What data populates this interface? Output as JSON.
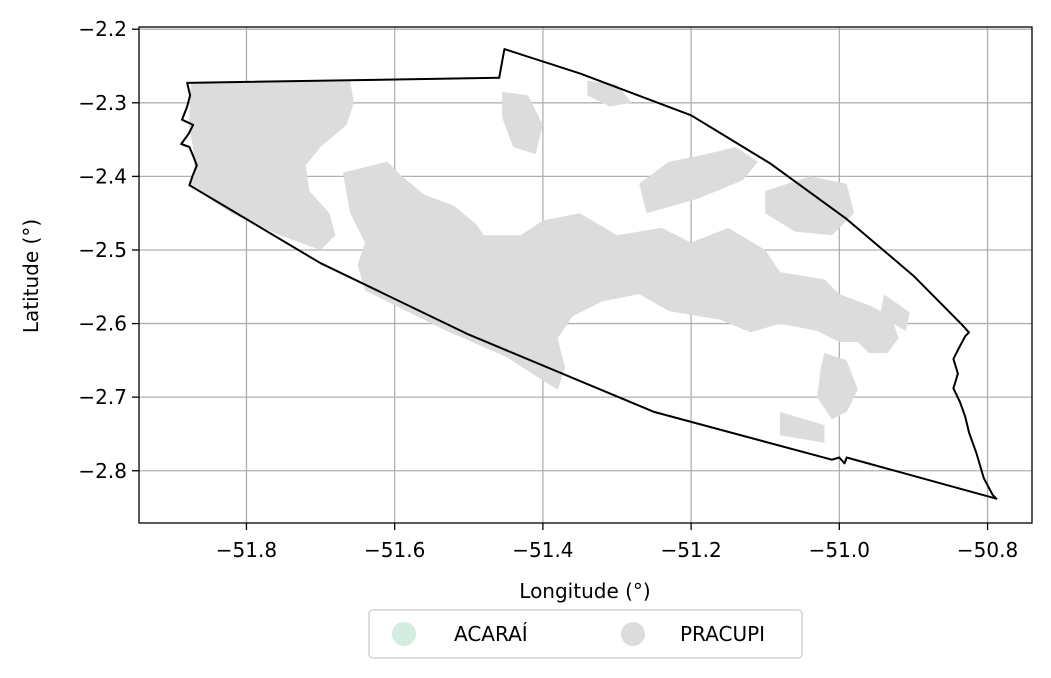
{
  "chart_data": {
    "type": "map",
    "xlabel": "Longitude (°)",
    "ylabel": "Latitude (°)",
    "xlim": [
      -51.945,
      -50.74
    ],
    "ylim": [
      -2.871,
      -2.197
    ],
    "xticks": [
      -51.8,
      -51.6,
      -51.4,
      -51.2,
      -51.0,
      -50.8
    ],
    "xtick_labels": [
      "−51.8",
      "−51.6",
      "−51.4",
      "−51.2",
      "−51.0",
      "−50.8"
    ],
    "yticks": [
      -2.2,
      -2.3,
      -2.4,
      -2.5,
      -2.6,
      -2.7,
      -2.8
    ],
    "ytick_labels": [
      "−2.2",
      "−2.3",
      "−2.4",
      "−2.5",
      "−2.6",
      "−2.7",
      "−2.8"
    ],
    "grid": true,
    "legend": {
      "placement": "bottom-center",
      "entries": [
        {
          "label": "ACARAÍ",
          "color": "#d3ede0"
        },
        {
          "label": "PRACUPI",
          "color": "#dcdcdc"
        }
      ]
    },
    "boundary_color": "#000000",
    "boundary": [
      [
        -51.88,
        -2.273
      ],
      [
        -51.459,
        -2.266
      ],
      [
        -51.452,
        -2.227
      ],
      [
        -51.35,
        -2.26
      ],
      [
        -51.2,
        -2.317
      ],
      [
        -51.094,
        -2.382
      ],
      [
        -50.99,
        -2.458
      ],
      [
        -50.9,
        -2.535
      ],
      [
        -50.835,
        -2.601
      ],
      [
        -50.825,
        -2.612
      ],
      [
        -50.83,
        -2.617
      ],
      [
        -50.838,
        -2.632
      ],
      [
        -50.846,
        -2.648
      ],
      [
        -50.84,
        -2.668
      ],
      [
        -50.846,
        -2.688
      ],
      [
        -50.837,
        -2.707
      ],
      [
        -50.83,
        -2.727
      ],
      [
        -50.825,
        -2.748
      ],
      [
        -50.815,
        -2.776
      ],
      [
        -50.805,
        -2.81
      ],
      [
        -50.793,
        -2.833
      ],
      [
        -50.788,
        -2.838
      ],
      [
        -50.99,
        -2.782
      ],
      [
        -50.993,
        -2.79
      ],
      [
        -51.0,
        -2.782
      ],
      [
        -51.01,
        -2.785
      ],
      [
        -51.25,
        -2.72
      ],
      [
        -51.5,
        -2.615
      ],
      [
        -51.7,
        -2.518
      ],
      [
        -51.877,
        -2.412
      ],
      [
        -51.873,
        -2.4
      ],
      [
        -51.867,
        -2.385
      ],
      [
        -51.872,
        -2.372
      ],
      [
        -51.877,
        -2.36
      ],
      [
        -51.888,
        -2.356
      ],
      [
        -51.878,
        -2.342
      ],
      [
        -51.872,
        -2.33
      ],
      [
        -51.887,
        -2.323
      ],
      [
        -51.88,
        -2.305
      ],
      [
        -51.876,
        -2.29
      ],
      [
        -51.88,
        -2.273
      ]
    ],
    "regions": [
      {
        "name": "PRACUPI",
        "color": "#dcdcdc",
        "polygons": [
          [
            [
              -51.875,
              -2.273
            ],
            [
              -51.66,
              -2.271
            ],
            [
              -51.655,
              -2.3
            ],
            [
              -51.665,
              -2.33
            ],
            [
              -51.7,
              -2.36
            ],
            [
              -51.72,
              -2.385
            ],
            [
              -51.715,
              -2.42
            ],
            [
              -51.688,
              -2.45
            ],
            [
              -51.68,
              -2.48
            ],
            [
              -51.7,
              -2.5
            ],
            [
              -51.76,
              -2.478
            ],
            [
              -51.82,
              -2.45
            ],
            [
              -51.877,
              -2.412
            ],
            [
              -51.87,
              -2.39
            ],
            [
              -51.872,
              -2.36
            ],
            [
              -51.878,
              -2.33
            ],
            [
              -51.876,
              -2.3
            ]
          ],
          [
            [
              -51.67,
              -2.395
            ],
            [
              -51.61,
              -2.38
            ],
            [
              -51.59,
              -2.4
            ],
            [
              -51.56,
              -2.425
            ],
            [
              -51.52,
              -2.44
            ],
            [
              -51.49,
              -2.465
            ],
            [
              -51.48,
              -2.48
            ],
            [
              -51.43,
              -2.48
            ],
            [
              -51.4,
              -2.46
            ],
            [
              -51.35,
              -2.45
            ],
            [
              -51.3,
              -2.48
            ],
            [
              -51.24,
              -2.47
            ],
            [
              -51.2,
              -2.49
            ],
            [
              -51.15,
              -2.47
            ],
            [
              -51.1,
              -2.5
            ],
            [
              -51.08,
              -2.53
            ],
            [
              -51.02,
              -2.54
            ],
            [
              -51.0,
              -2.56
            ],
            [
              -50.96,
              -2.575
            ],
            [
              -50.93,
              -2.59
            ],
            [
              -50.92,
              -2.62
            ],
            [
              -50.935,
              -2.64
            ],
            [
              -50.96,
              -2.64
            ],
            [
              -50.975,
              -2.625
            ],
            [
              -51.0,
              -2.625
            ],
            [
              -51.03,
              -2.61
            ],
            [
              -51.08,
              -2.6
            ],
            [
              -51.12,
              -2.612
            ],
            [
              -51.16,
              -2.595
            ],
            [
              -51.23,
              -2.583
            ],
            [
              -51.27,
              -2.56
            ],
            [
              -51.32,
              -2.57
            ],
            [
              -51.36,
              -2.59
            ],
            [
              -51.38,
              -2.62
            ],
            [
              -51.37,
              -2.66
            ],
            [
              -51.38,
              -2.69
            ],
            [
              -51.45,
              -2.645
            ],
            [
              -51.53,
              -2.61
            ],
            [
              -51.6,
              -2.575
            ],
            [
              -51.64,
              -2.555
            ],
            [
              -51.65,
              -2.52
            ],
            [
              -51.64,
              -2.49
            ],
            [
              -51.66,
              -2.45
            ]
          ],
          [
            [
              -51.26,
              -2.45
            ],
            [
              -51.19,
              -2.43
            ],
            [
              -51.13,
              -2.405
            ],
            [
              -51.11,
              -2.38
            ],
            [
              -51.14,
              -2.36
            ],
            [
              -51.18,
              -2.37
            ],
            [
              -51.23,
              -2.38
            ],
            [
              -51.27,
              -2.41
            ]
          ],
          [
            [
              -51.1,
              -2.42
            ],
            [
              -51.04,
              -2.4
            ],
            [
              -50.99,
              -2.41
            ],
            [
              -50.98,
              -2.45
            ],
            [
              -51.01,
              -2.48
            ],
            [
              -51.06,
              -2.475
            ],
            [
              -51.1,
              -2.45
            ]
          ],
          [
            [
              -51.02,
              -2.64
            ],
            [
              -50.99,
              -2.65
            ],
            [
              -50.975,
              -2.69
            ],
            [
              -50.99,
              -2.72
            ],
            [
              -51.01,
              -2.73
            ],
            [
              -51.03,
              -2.7
            ],
            [
              -51.025,
              -2.66
            ]
          ],
          [
            [
              -51.08,
              -2.72
            ],
            [
              -51.02,
              -2.738
            ],
            [
              -51.02,
              -2.762
            ],
            [
              -51.08,
              -2.752
            ]
          ],
          [
            [
              -50.94,
              -2.56
            ],
            [
              -50.905,
              -2.585
            ],
            [
              -50.91,
              -2.61
            ],
            [
              -50.945,
              -2.59
            ]
          ],
          [
            [
              -51.455,
              -2.285
            ],
            [
              -51.42,
              -2.29
            ],
            [
              -51.4,
              -2.33
            ],
            [
              -51.41,
              -2.37
            ],
            [
              -51.44,
              -2.36
            ],
            [
              -51.455,
              -2.32
            ]
          ],
          [
            [
              -51.34,
              -2.27
            ],
            [
              -51.3,
              -2.275
            ],
            [
              -51.28,
              -2.3
            ],
            [
              -51.31,
              -2.305
            ],
            [
              -51.34,
              -2.29
            ]
          ]
        ]
      }
    ]
  }
}
